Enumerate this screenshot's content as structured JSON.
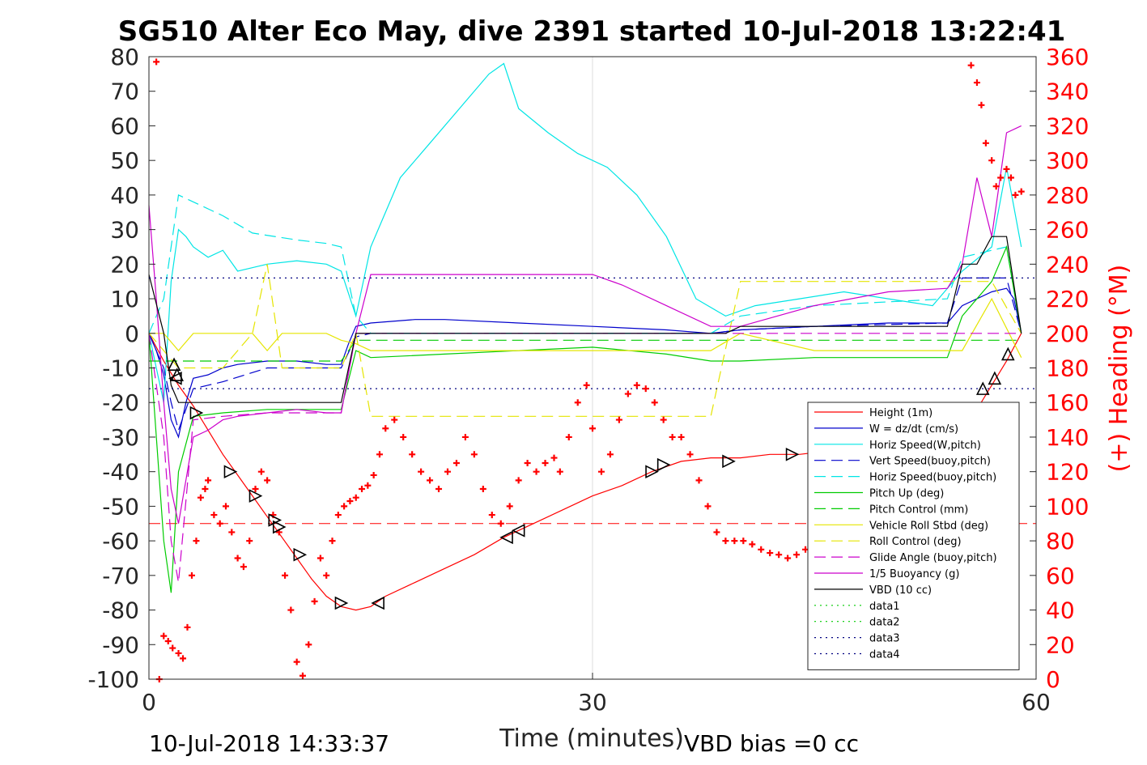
{
  "chart_data": {
    "type": "line",
    "title": "SG510 Alter Eco May, dive 2391 started 10-Jul-2018 13:22:41",
    "xlabel": "Time (minutes)",
    "ylabel": "",
    "ylabel_right": "(+) Heading (°M)",
    "xlim": [
      0,
      60
    ],
    "ylim": [
      -100,
      80
    ],
    "ylim_right": [
      0,
      360
    ],
    "x_ticks": [
      "0",
      "30",
      "60"
    ],
    "y_ticks": [
      "80",
      "70",
      "60",
      "50",
      "40",
      "30",
      "20",
      "10",
      "0",
      "-10",
      "-20",
      "-30",
      "-40",
      "-50",
      "-60",
      "-70",
      "-80",
      "-90",
      "-100"
    ],
    "y_right_ticks": [
      "360",
      "340",
      "320",
      "300",
      "280",
      "260",
      "240",
      "220",
      "200",
      "180",
      "160",
      "140",
      "120",
      "100",
      "80",
      "60",
      "40",
      "20",
      "0"
    ],
    "grid": "x-only",
    "legend_position": "lower-right",
    "footer_left": "10-Jul-2018 14:33:37",
    "footer_right": "VBD bias =0 cc",
    "series": [
      {
        "name": "Height (1m)",
        "color": "#ff0000",
        "style": "solid",
        "x": [
          0,
          1,
          2,
          3,
          4,
          5,
          6,
          7,
          8,
          9,
          10,
          11,
          12,
          13,
          14,
          15,
          16,
          18,
          20,
          22,
          24,
          26,
          28,
          30,
          32,
          34,
          36,
          38,
          40,
          42,
          44,
          46,
          48,
          50,
          52,
          54,
          56,
          58,
          59
        ],
        "y": [
          0,
          -8,
          -15,
          -21,
          -28,
          -35,
          -41,
          -47,
          -53,
          -59,
          -65,
          -71,
          -76,
          -79,
          -80,
          -79,
          -76,
          -72,
          -68,
          -64,
          -59,
          -55,
          -51,
          -47,
          -44,
          -40,
          -37,
          -36,
          -36,
          -35,
          -35,
          -34,
          -34,
          -34,
          -34,
          -30,
          -22,
          -8,
          0
        ]
      },
      {
        "name": "W = dz/dt (cm/s)",
        "color": "#0000cc",
        "style": "solid",
        "x": [
          0,
          0.5,
          1,
          1.5,
          2,
          2.5,
          3,
          4,
          5,
          6,
          8,
          10,
          12,
          13,
          13.5,
          14,
          15,
          18,
          20,
          25,
          30,
          35,
          38,
          40,
          45,
          50,
          54,
          55,
          57,
          58,
          58.5,
          59
        ],
        "y": [
          0,
          -5,
          -12,
          -25,
          -30,
          -20,
          -13,
          -12,
          -10,
          -9,
          -8,
          -8,
          -9,
          -9,
          -3,
          2,
          3,
          4,
          4,
          3,
          2,
          1,
          0,
          1,
          2,
          3,
          3,
          8,
          12,
          13,
          10,
          0
        ]
      },
      {
        "name": "Horiz Speed(W,pitch)",
        "color": "#00e5e5",
        "style": "solid",
        "x": [
          0,
          0.5,
          1,
          1.5,
          2,
          2.5,
          3,
          4,
          5,
          6,
          8,
          10,
          12,
          13,
          14,
          15,
          17,
          19,
          21,
          23,
          24,
          25,
          27,
          29,
          31,
          33,
          35,
          37,
          39,
          41,
          44,
          47,
          50,
          53,
          55,
          57,
          58,
          59
        ],
        "y": [
          0,
          -10,
          -20,
          15,
          30,
          28,
          25,
          22,
          24,
          18,
          20,
          21,
          20,
          18,
          5,
          25,
          45,
          55,
          65,
          75,
          78,
          65,
          58,
          52,
          48,
          40,
          28,
          10,
          5,
          8,
          10,
          12,
          10,
          8,
          18,
          25,
          48,
          25
        ]
      },
      {
        "name": "Vert Speed(buoy,pitch)",
        "color": "#0000cc",
        "style": "dashed",
        "x": [
          0,
          1,
          1.5,
          2,
          3,
          5,
          8,
          10,
          13,
          14,
          15,
          20,
          30,
          38,
          40,
          45,
          54,
          55,
          58,
          59
        ],
        "y": [
          0,
          -10,
          -20,
          -28,
          -16,
          -14,
          -10,
          -10,
          -10,
          -1,
          0,
          0,
          0,
          0,
          1,
          2,
          3,
          16,
          16,
          0
        ]
      },
      {
        "name": "Horiz Speed(buoy,pitch)",
        "color": "#00e5e5",
        "style": "dashed",
        "x": [
          0,
          1,
          1.5,
          2,
          3,
          4,
          5,
          7,
          10,
          12,
          13,
          14,
          15,
          20,
          30,
          38,
          40,
          45,
          54,
          55,
          57,
          58,
          59
        ],
        "y": [
          0,
          10,
          25,
          40,
          38,
          36,
          34,
          29,
          27,
          26,
          25,
          5,
          0,
          0,
          0,
          0,
          5,
          8,
          10,
          22,
          24,
          25,
          0
        ]
      },
      {
        "name": "Pitch Up (deg)",
        "color": "#00cc00",
        "style": "solid",
        "x": [
          0,
          1,
          1.5,
          2,
          3,
          5,
          8,
          10,
          13,
          14,
          15,
          20,
          25,
          30,
          35,
          38,
          40,
          45,
          50,
          54,
          55,
          57,
          58,
          59
        ],
        "y": [
          0,
          -60,
          -75,
          -40,
          -24,
          -23,
          -22,
          -22,
          -22,
          -5,
          -7,
          -6,
          -5,
          -4,
          -6,
          -8,
          -8,
          -7,
          -7,
          -7,
          5,
          15,
          25,
          0
        ]
      },
      {
        "name": "Pitch Control (mm)",
        "color": "#00cc00",
        "style": "dashed",
        "x": [
          0,
          2,
          13,
          14,
          59
        ],
        "y": [
          -8,
          -8,
          -8,
          -2,
          -2
        ]
      },
      {
        "name": "Vehicle Roll Stbd (deg)",
        "color": "#e5e500",
        "style": "solid",
        "x": [
          0,
          1,
          2,
          3,
          5,
          7,
          8,
          9,
          10,
          12,
          13,
          14,
          15,
          20,
          25,
          30,
          35,
          38,
          40,
          45,
          50,
          55,
          57,
          59
        ],
        "y": [
          0,
          0,
          -5,
          0,
          0,
          0,
          -5,
          0,
          0,
          0,
          -2,
          -3,
          -5,
          -5,
          -5,
          -5,
          -5,
          -5,
          0,
          -5,
          -5,
          -5,
          10,
          -7
        ]
      },
      {
        "name": "Roll Control (deg)",
        "color": "#e5e500",
        "style": "dashed",
        "x": [
          0,
          1,
          2,
          3,
          5,
          7,
          8,
          9,
          10,
          12,
          13,
          14,
          15,
          20,
          25,
          30,
          35,
          38,
          40,
          45,
          50,
          55,
          57,
          59
        ],
        "y": [
          0,
          -5,
          -10,
          -10,
          -10,
          0,
          20,
          -10,
          -10,
          -10,
          -10,
          0,
          -24,
          -24,
          -24,
          -24,
          -24,
          -24,
          15,
          15,
          15,
          15,
          15,
          0
        ]
      },
      {
        "name": "Glide Angle (buoy,pitch)",
        "color": "#cc00cc",
        "style": "dashed",
        "x": [
          0,
          1,
          1.5,
          2,
          3,
          5,
          8,
          10,
          13,
          14,
          15,
          20,
          25,
          30,
          35,
          38,
          40,
          45,
          50,
          54,
          55,
          58,
          59
        ],
        "y": [
          0,
          -30,
          -60,
          -72,
          -25,
          -24,
          -23,
          -23,
          -23,
          0,
          0,
          0,
          0,
          0,
          0,
          0,
          0,
          0,
          0,
          0,
          0,
          0,
          0
        ]
      },
      {
        "name": "1/5 Buoyancy (g)",
        "color": "#cc00cc",
        "style": "solid",
        "x": [
          0,
          0.5,
          1,
          1.5,
          2,
          3,
          4,
          5,
          6,
          8,
          10,
          12,
          13,
          14,
          15,
          20,
          25,
          30,
          32,
          35,
          38,
          40,
          45,
          50,
          54,
          55,
          56,
          57,
          58,
          59
        ],
        "y": [
          37,
          10,
          -20,
          -45,
          -55,
          -30,
          -28,
          -25,
          -24,
          -23,
          -22,
          -23,
          -23,
          0,
          17,
          17,
          17,
          17,
          14,
          8,
          2,
          2,
          8,
          12,
          13,
          20,
          45,
          28,
          58,
          60
        ]
      },
      {
        "name": "VBD (10 cc)",
        "color": "#000000",
        "style": "solid",
        "x": [
          0,
          1,
          1.5,
          2,
          5,
          12,
          13,
          13.5,
          14,
          15,
          30,
          38,
          39,
          40,
          42,
          54,
          55,
          56,
          57,
          58,
          59
        ],
        "y": [
          17,
          0,
          -15,
          -20,
          -20,
          -20,
          -20,
          -10,
          0,
          0,
          0,
          0,
          0,
          2,
          2,
          2,
          20,
          20,
          28,
          28,
          0
        ]
      },
      {
        "name": "data1",
        "color": "#00cc00",
        "style": "dotted",
        "x": [],
        "y": []
      },
      {
        "name": "data2",
        "color": "#00cc00",
        "style": "dotted",
        "x": [],
        "y": []
      },
      {
        "name": "data3",
        "color": "#000080",
        "style": "dotted",
        "x": [
          0,
          60
        ],
        "y": [
          16,
          16
        ]
      },
      {
        "name": "data4",
        "color": "#000080",
        "style": "dotted",
        "x": [
          0,
          60
        ],
        "y": [
          -16,
          -16
        ]
      }
    ],
    "reference_lines": [
      {
        "y": -55,
        "color": "#ff0000",
        "style": "dashed"
      }
    ],
    "heading_series": {
      "name": "(+) Heading (°M)",
      "color": "#ff0000",
      "marker": "+",
      "axis": "right",
      "x": [
        0.5,
        0.7,
        1,
        1.3,
        1.6,
        2,
        2.3,
        2.6,
        2.9,
        3.2,
        3.5,
        3.8,
        4,
        4.4,
        4.8,
        5.2,
        5.6,
        6,
        6.4,
        6.8,
        7.2,
        7.6,
        8,
        8.4,
        8.8,
        9.2,
        9.6,
        10,
        10.4,
        10.8,
        11.2,
        11.6,
        12,
        12.4,
        12.8,
        13.2,
        13.6,
        14,
        14.4,
        14.8,
        15.2,
        15.6,
        16,
        16.6,
        17.2,
        17.8,
        18.4,
        19,
        19.6,
        20.2,
        20.8,
        21.4,
        22,
        22.6,
        23.2,
        23.8,
        24.4,
        25,
        25.6,
        26.2,
        26.8,
        27.4,
        27.8,
        28.4,
        29,
        29.6,
        30,
        30.6,
        31.2,
        31.8,
        32.4,
        33,
        33.6,
        34.2,
        34.8,
        35.4,
        36,
        36.6,
        37.2,
        37.8,
        38.4,
        39,
        39.6,
        40.2,
        40.8,
        41.4,
        42,
        42.6,
        43.2,
        43.8,
        44.4,
        45,
        55.6,
        56,
        56.3,
        56.6,
        57,
        57.3,
        57.6,
        58,
        58.3,
        58.6,
        59
      ],
      "y": [
        357,
        0,
        25,
        22,
        18,
        15,
        12,
        30,
        60,
        80,
        105,
        110,
        115,
        95,
        90,
        100,
        85,
        70,
        65,
        80,
        110,
        120,
        115,
        95,
        85,
        60,
        40,
        10,
        2,
        20,
        45,
        70,
        60,
        80,
        95,
        100,
        103,
        105,
        110,
        112,
        118,
        130,
        145,
        150,
        140,
        130,
        120,
        115,
        110,
        120,
        125,
        140,
        130,
        110,
        95,
        90,
        100,
        115,
        125,
        120,
        125,
        128,
        120,
        140,
        160,
        170,
        145,
        120,
        130,
        150,
        165,
        170,
        168,
        160,
        150,
        140,
        140,
        130,
        115,
        100,
        85,
        80,
        80,
        80,
        78,
        75,
        73,
        72,
        70,
        72,
        75,
        80,
        355,
        345,
        332,
        310,
        300,
        285,
        290,
        295,
        290,
        280,
        282
      ]
    },
    "markers": {
      "name": "triangle markers",
      "color": "#000000",
      "points": [
        {
          "x": 1.7,
          "y": -9,
          "dir": "up"
        },
        {
          "x": 1.8,
          "y": -13,
          "dir": "left"
        },
        {
          "x": 1.9,
          "y": -12,
          "dir": "up"
        },
        {
          "x": 3.2,
          "y": -23,
          "dir": "right"
        },
        {
          "x": 5.5,
          "y": -40,
          "dir": "right"
        },
        {
          "x": 7.2,
          "y": -47,
          "dir": "right"
        },
        {
          "x": 8.5,
          "y": -54,
          "dir": "right"
        },
        {
          "x": 8.8,
          "y": -56,
          "dir": "right"
        },
        {
          "x": 10.2,
          "y": -64,
          "dir": "right"
        },
        {
          "x": 13.0,
          "y": -78,
          "dir": "right"
        },
        {
          "x": 15.5,
          "y": -78,
          "dir": "left"
        },
        {
          "x": 24.2,
          "y": -59,
          "dir": "left"
        },
        {
          "x": 25.0,
          "y": -57,
          "dir": "left"
        },
        {
          "x": 34.0,
          "y": -40,
          "dir": "right"
        },
        {
          "x": 34.8,
          "y": -38,
          "dir": "right"
        },
        {
          "x": 39.2,
          "y": -37,
          "dir": "right"
        },
        {
          "x": 43.5,
          "y": -35,
          "dir": "right"
        },
        {
          "x": 56.4,
          "y": -16,
          "dir": "up"
        },
        {
          "x": 57.2,
          "y": -13,
          "dir": "up"
        },
        {
          "x": 58.1,
          "y": -6,
          "dir": "up"
        }
      ]
    }
  }
}
